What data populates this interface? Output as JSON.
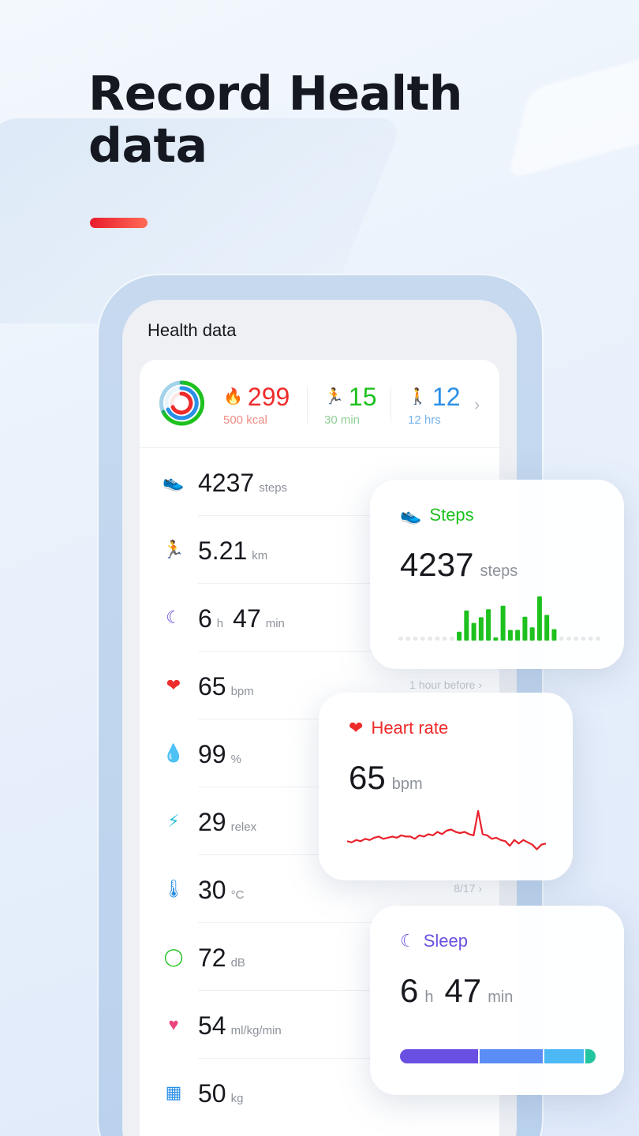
{
  "headline": "Record Health data",
  "colors": {
    "accent_red": "#e91b2c",
    "green": "#1ec11e",
    "blue": "#2a8fe6",
    "purple": "#6b4fe0",
    "cyan": "#2bbfd6"
  },
  "screen": {
    "title": "Health data",
    "summary": {
      "calories": {
        "icon": "flame-icon",
        "value": "299",
        "sub": "500 kcal"
      },
      "exercise": {
        "icon": "running-icon",
        "value": "15",
        "sub": "30 min"
      },
      "standing": {
        "icon": "walking-icon",
        "value": "12",
        "sub": "12 hrs"
      }
    },
    "rows": [
      {
        "name": "steps",
        "icon": "shoe-icon",
        "value": "4237",
        "unit": "steps",
        "meta": ""
      },
      {
        "name": "distance",
        "icon": "running-icon",
        "value": "5.21",
        "unit": "km",
        "meta": ""
      },
      {
        "name": "sleep",
        "icon": "moon-icon",
        "value": "6",
        "unit": "h",
        "value2": "47",
        "unit2": "min",
        "meta": ""
      },
      {
        "name": "heart-rate",
        "icon": "heart-icon",
        "value": "65",
        "unit": "bpm",
        "meta": "1 hour before"
      },
      {
        "name": "oxygen",
        "icon": "oxygen-drop-icon",
        "value": "99",
        "unit": "%",
        "meta": ""
      },
      {
        "name": "stress",
        "icon": "lightning-icon",
        "value": "29",
        "unit": "relex",
        "meta": ""
      },
      {
        "name": "temperature",
        "icon": "thermometer-icon",
        "value": "30",
        "unit": "°C",
        "meta": "8/17"
      },
      {
        "name": "noise",
        "icon": "ear-icon",
        "value": "72",
        "unit": "dB",
        "meta": ""
      },
      {
        "name": "vo2max",
        "icon": "heart-percent-icon",
        "value": "54",
        "unit": "ml/kg/min",
        "meta": ""
      },
      {
        "name": "weight",
        "icon": "scale-icon",
        "value": "50",
        "unit": "kg",
        "meta": ""
      }
    ]
  },
  "cards": {
    "steps": {
      "title": "Steps",
      "value": "4237",
      "unit": "steps",
      "bars": [
        0,
        0,
        0,
        0,
        0,
        0,
        0,
        0,
        0.2,
        0.68,
        0.4,
        0.53,
        0.71,
        0.05,
        0.79,
        0.24,
        0.24,
        0.54,
        0.3,
        1.0,
        0.58,
        0.26,
        0,
        0,
        0,
        0,
        0,
        0
      ]
    },
    "heart": {
      "title": "Heart rate",
      "value": "65",
      "unit": "bpm",
      "series": [
        62,
        61,
        63,
        62,
        64,
        63,
        65,
        66,
        64,
        65,
        66,
        65,
        67,
        66,
        66,
        64,
        67,
        66,
        68,
        67,
        70,
        68,
        71,
        72,
        70,
        69,
        70,
        68,
        67,
        88,
        68,
        67,
        64,
        65,
        63,
        62,
        58,
        63,
        60,
        63,
        61,
        59,
        55,
        59,
        60
      ]
    },
    "sleep": {
      "title": "Sleep",
      "value": "6",
      "unit": "h",
      "value2": "47",
      "unit2": "min",
      "segments": [
        {
          "stage": "deep",
          "fraction": 0.4,
          "color": "#6a4fe3"
        },
        {
          "stage": "light",
          "fraction": 0.33,
          "color": "#5a8df5"
        },
        {
          "stage": "rem",
          "fraction": 0.21,
          "color": "#4cb8f5"
        },
        {
          "stage": "awake",
          "fraction": 0.06,
          "color": "#23c4a0"
        }
      ]
    }
  }
}
